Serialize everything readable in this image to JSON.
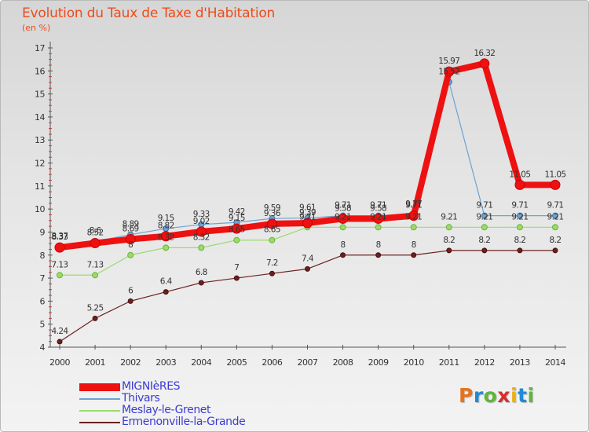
{
  "title": "Evolution du Taux de Taxe d'Habitation",
  "unit": "(en %)",
  "brand": {
    "letters": [
      "P",
      "r",
      "o",
      "x",
      "i",
      "t",
      "i"
    ],
    "colors": [
      "#e8731a",
      "#1f8bd6",
      "#5fb53a",
      "#d62e2e",
      "#e8b11a",
      "#1f8bd6",
      "#5fb53a"
    ]
  },
  "chart_data": {
    "type": "line",
    "x": [
      2000,
      2001,
      2002,
      2003,
      2004,
      2005,
      2006,
      2007,
      2008,
      2009,
      2010,
      2011,
      2012,
      2013,
      2014
    ],
    "ylim": [
      4,
      17
    ],
    "yticks": [
      4,
      5,
      6,
      7,
      8,
      9,
      10,
      11,
      12,
      13,
      14,
      15,
      16,
      17
    ],
    "grid": false,
    "legend_position": "bottom-left",
    "series": [
      {
        "name": "MIGNIèRES",
        "color": "#ee1111",
        "values": [
          8.33,
          8.52,
          8.69,
          8.82,
          9.02,
          9.15,
          9.36,
          9.39,
          9.58,
          9.58,
          9.71,
          15.97,
          16.32,
          11.05,
          11.05
        ],
        "labels": [
          "8.33",
          "8.52",
          "8.69",
          "8.82",
          "9.02",
          "9.15",
          "9.36",
          "9.39",
          "9.58",
          "9.58",
          "9.71",
          "15.97",
          "16.32",
          "11.05",
          "11.05"
        ]
      },
      {
        "name": "Thivars",
        "color": "#6aa3d6",
        "values": [
          8.37,
          8.6,
          8.89,
          9.15,
          9.33,
          9.42,
          9.59,
          9.61,
          9.71,
          9.71,
          9.77,
          15.52,
          9.71,
          9.71,
          9.71
        ],
        "labels": [
          "8.37",
          "8.6",
          "8.89",
          "9.15",
          "9.33",
          "9.42",
          "9.59",
          "9.61",
          "9.71",
          "9.71",
          "9.77",
          "15.52",
          "9.71",
          "9.71",
          "9.71"
        ]
      },
      {
        "name": "Meslay-le-Grenet",
        "color": "#9adb6a",
        "values": [
          7.13,
          7.13,
          8.0,
          8.32,
          8.32,
          8.65,
          8.65,
          9.21,
          9.21,
          9.21,
          9.21,
          9.21,
          9.21,
          9.21,
          9.21
        ],
        "labels": [
          "7.13",
          "7.13",
          "8",
          "8.32",
          "8.32",
          "8.65",
          "8.65",
          "9.21",
          "9.21",
          "9.21",
          "9.21",
          "9.21",
          "9.21",
          "9.21",
          "9.21"
        ]
      },
      {
        "name": "Ermenonville-la-Grande",
        "color": "#6b2020",
        "values": [
          4.24,
          5.25,
          6.0,
          6.4,
          6.8,
          7.0,
          7.2,
          7.4,
          8.0,
          8.0,
          8.0,
          8.2,
          8.2,
          8.2,
          8.2
        ],
        "labels": [
          "4.24",
          "5.25",
          "6",
          "6.4",
          "6.8",
          "7",
          "7.2",
          "7.4",
          "8",
          "8",
          "8",
          "8.2",
          "8.2",
          "8.2",
          "8.2"
        ]
      }
    ]
  }
}
